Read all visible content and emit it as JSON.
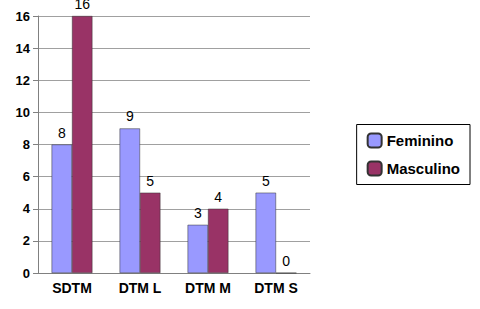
{
  "chart_data": {
    "type": "bar",
    "categories": [
      "SDTM",
      "DTM L",
      "DTM M",
      "DTM S"
    ],
    "series": [
      {
        "name": "Feminino",
        "color": "#9999ff",
        "values": [
          8,
          9,
          3,
          5
        ]
      },
      {
        "name": "Masculino",
        "color": "#993366",
        "values": [
          16,
          5,
          4,
          0
        ]
      }
    ],
    "ylim": [
      0,
      16
    ],
    "yticks": [
      0,
      2,
      4,
      6,
      8,
      10,
      12,
      14,
      16
    ],
    "grid": true,
    "legend": "right",
    "data_labels": true
  }
}
